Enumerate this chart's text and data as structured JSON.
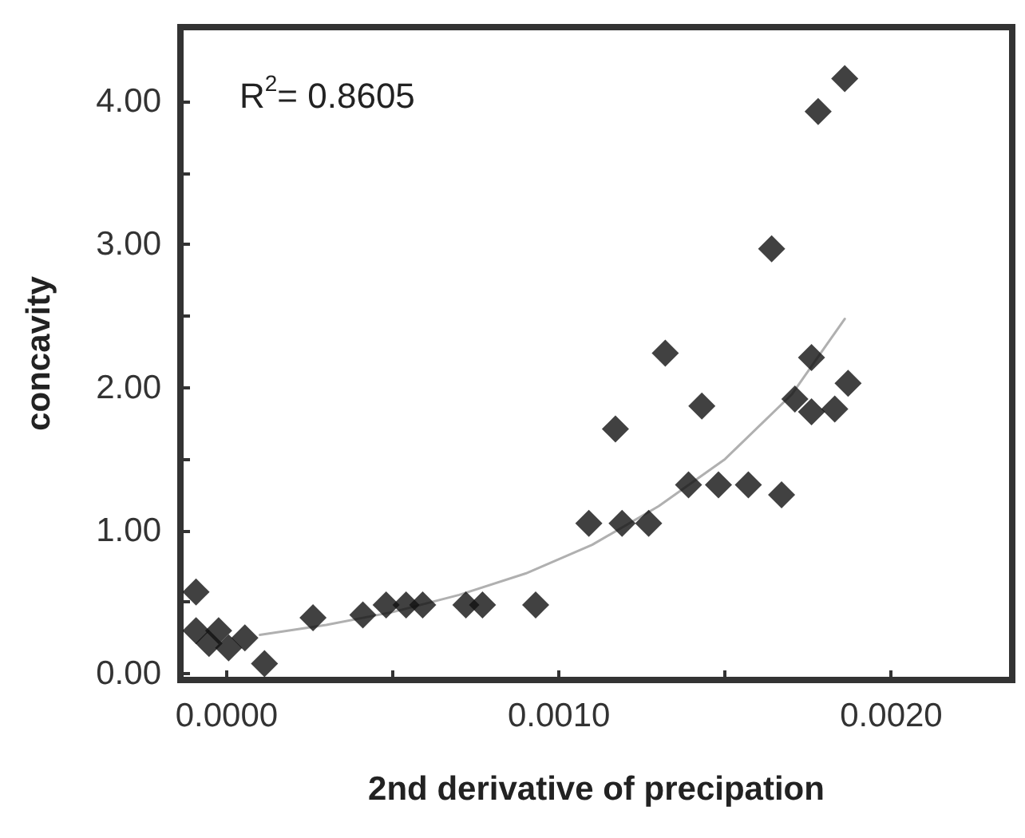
{
  "chart_data": {
    "type": "scatter",
    "xlabel": "2nd derivative of precipation",
    "ylabel": "concavity",
    "annotations": [
      "R$^{2}$= 0.8605"
    ],
    "xlim": [
      -0.000139,
      0.002364
    ],
    "xticks": [
      {
        "value": 0,
        "label": "0.0000"
      },
      {
        "value": 0.0005,
        "label": null
      },
      {
        "value": 0.001,
        "label": "0.0010"
      },
      {
        "value": 0.0015,
        "label": null
      },
      {
        "value": 0.002,
        "label": "0.0020"
      }
    ],
    "ylim": [
      -0.045,
      4.52
    ],
    "yticks": [
      {
        "value": 0,
        "label": "0.00"
      },
      {
        "value": 0.5,
        "label": null
      },
      {
        "value": 1,
        "label": "1.00"
      },
      {
        "value": 1.5,
        "label": null
      },
      {
        "value": 2,
        "label": "2.00"
      },
      {
        "value": 2.5,
        "label": null
      },
      {
        "value": 3,
        "label": "3.00"
      },
      {
        "value": 3.5,
        "label": null
      },
      {
        "value": 4,
        "label": "4.00"
      }
    ],
    "grid": false,
    "marker": "diamond",
    "series": [
      {
        "color": "#111111",
        "x": [
          -9.2e-05,
          -9.2e-05,
          -5.3e-05,
          -2.4e-05,
          6e-06,
          5.5e-05,
          0.000114,
          0.00026,
          0.00041,
          0.00048,
          0.00054,
          0.00059,
          0.00072,
          0.00077,
          0.00093,
          0.00109,
          0.00119,
          0.00127,
          0.00117,
          0.00132,
          0.00143,
          0.00139,
          0.00148,
          0.00157,
          0.00167,
          0.00164,
          0.00171,
          0.00176,
          0.00183,
          0.00187,
          0.00176,
          0.00178,
          0.00186
        ],
        "values": [
          0.57,
          0.3,
          0.21,
          0.3,
          0.18,
          0.25,
          0.07,
          0.39,
          0.41,
          0.48,
          0.48,
          0.48,
          0.48,
          0.48,
          0.48,
          1.05,
          1.05,
          1.05,
          1.71,
          2.24,
          1.87,
          1.32,
          1.32,
          1.32,
          1.25,
          2.97,
          1.92,
          1.83,
          1.85,
          2.03,
          2.21,
          3.93,
          4.16
        ]
      },
      {
        "type": "line",
        "color": "#b0b0b0",
        "marker": "none",
        "line_style": "solid",
        "x": [
          0.0001,
          0.0003,
          0.0005,
          0.0007,
          0.0009,
          0.0011,
          0.0013,
          0.0015,
          0.0017,
          0.00186
        ],
        "values": [
          0.27,
          0.34,
          0.43,
          0.55,
          0.7,
          0.9,
          1.17,
          1.5,
          1.95,
          2.48
        ]
      }
    ]
  }
}
